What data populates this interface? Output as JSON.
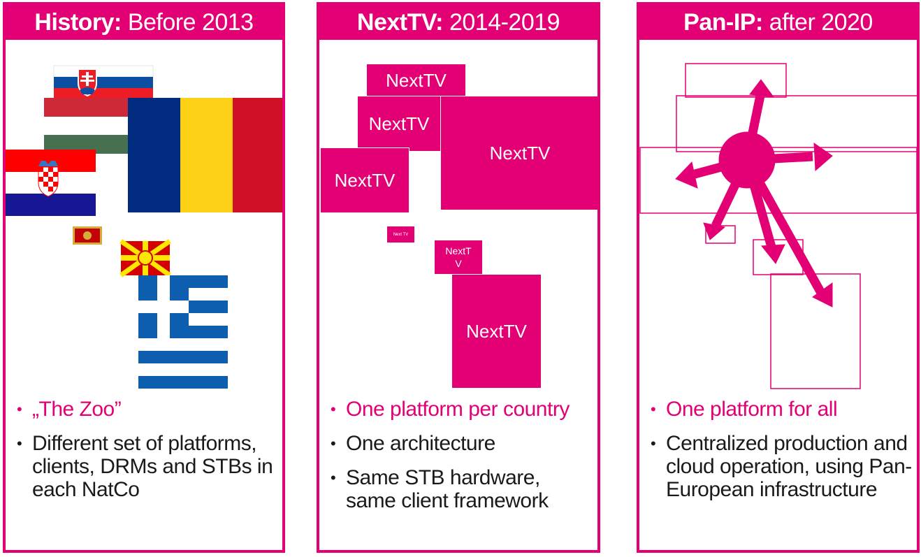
{
  "panels": [
    {
      "title_bold": "History:",
      "title_rest": " Before 2013",
      "bullets": [
        {
          "text": "„The Zoo”",
          "accent": true
        },
        {
          "text": "Different set of platforms, clients, DRMs and STBs in each NatCo",
          "accent": false
        }
      ],
      "flags": [
        "slovakia-flag",
        "hungary-flag",
        "romania-flag",
        "croatia-flag",
        "montenegro-flag",
        "macedonia-flag",
        "greece-flag"
      ]
    },
    {
      "title_bold": "NextTV:",
      "title_rest": " 2014-2019",
      "boxes": [
        {
          "label": "NextTV"
        },
        {
          "label": "NextTV"
        },
        {
          "label": "NextTV"
        },
        {
          "label": "NextTV"
        },
        {
          "label": "Next TV"
        },
        {
          "label": "NextT V"
        },
        {
          "label": "NextTV"
        }
      ],
      "bullets": [
        {
          "text": "One platform per country",
          "accent": true
        },
        {
          "text": "One architecture",
          "accent": false
        },
        {
          "text": "Same STB hardware, same client framework",
          "accent": false
        }
      ]
    },
    {
      "title_bold": "Pan-IP:",
      "title_rest": " after 2020",
      "bullets": [
        {
          "text": "One platform for all",
          "accent": true
        },
        {
          "text": "Centralized production and cloud operation, using Pan-European infrastructure",
          "accent": false
        }
      ]
    }
  ],
  "colors": {
    "accent": "#e20074"
  }
}
